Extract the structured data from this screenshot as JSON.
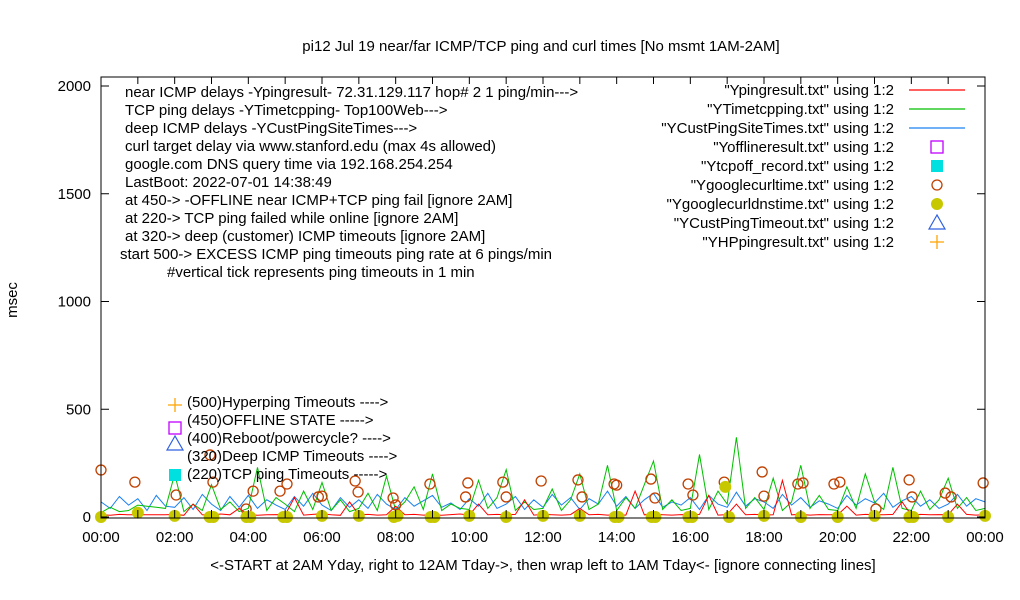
{
  "chart_data": {
    "type": "line",
    "title": "pi12 Jul 19  near/far ICMP/TCP ping and curl times [No msmt 1AM-2AM]",
    "xlabel": "<-START at 2AM Yday, right to 12AM Tday->, then wrap left to 1AM Tday<- [ignore connecting lines]",
    "ylabel": "msec",
    "xlim_hours": [
      0,
      24
    ],
    "ylim": [
      0,
      2050
    ],
    "x_tick_labels": [
      "00:00",
      "02:00",
      "04:00",
      "06:00",
      "08:00",
      "10:00",
      "12:00",
      "14:00",
      "16:00",
      "18:00",
      "20:00",
      "22:00",
      "00:00"
    ],
    "y_tick_labels": [
      "0",
      "500",
      "1000",
      "1500",
      "2000"
    ],
    "y_ticks": [
      0,
      500,
      1000,
      1500,
      2000
    ],
    "grid": false,
    "sample_interval_hours": 0.25,
    "annotations_top": [
      "near ICMP delays -Ypingresult- 72.31.129.117 hop# 2 1 ping/min--->",
      "TCP ping delays -YTimetcpping- Top100Web--->",
      "deep ICMP delays -YCustPingSiteTimes--->",
      "curl target delay via www.stanford.edu (max 4s allowed)",
      "google.com DNS query time via 192.168.254.254",
      "LastBoot: 2022-07-01 14:38:49",
      "at 450-> -OFFLINE near ICMP+TCP ping fail [ignore 2AM]",
      "at 220-> TCP ping failed while online [ignore 2AM]",
      "at 320-> deep (customer) ICMP timeouts [ignore 2AM]",
      "start 500-> EXCESS ICMP ping timeouts ping rate at 6 pings/min",
      "#vertical tick represents ping timeouts in 1 min"
    ],
    "annotations_bottom": [
      {
        "text": "(500)Hyperping Timeouts ---->",
        "icon": "plus",
        "color": "#ffa500"
      },
      {
        "text": "(450)OFFLINE STATE ----->",
        "icon": "square-open",
        "color": "#c000ff"
      },
      {
        "text": "(400)Reboot/powercycle? ---->",
        "icon": "none",
        "color": ""
      },
      {
        "text": "(320)Deep ICMP Timeouts ---->",
        "icon": "triangle-open",
        "color": "#3060e0"
      },
      {
        "text": "(220)TCP ping Timeouts ----->",
        "icon": "square-filled",
        "color": "#00e0e0"
      }
    ],
    "legend_position": "top-right",
    "legend": [
      {
        "label": "\"Ypingresult.txt\" using 1:2",
        "style": "line",
        "color": "#ff0000"
      },
      {
        "label": "\"YTimetcpping.txt\" using 1:2",
        "style": "line",
        "color": "#00c000"
      },
      {
        "label": "\"YCustPingSiteTimes.txt\" using 1:2",
        "style": "line",
        "color": "#1a80f0"
      },
      {
        "label": "\"Yofflineresult.txt\" using 1:2",
        "style": "square-open",
        "color": "#c000ff"
      },
      {
        "label": "\"Ytcpoff_record.txt\" using 1:2",
        "style": "square-filled",
        "color": "#00e0e0"
      },
      {
        "label": "\"Ygooglecurltime.txt\" using 1:2",
        "style": "circle-open",
        "color": "#c04000"
      },
      {
        "label": "\"Ygooglecurldnstime.txt\" using 1:2",
        "style": "circle-filled",
        "color": "#c8c800"
      },
      {
        "label": "\"YCustPingTimeout.txt\" using 1:2",
        "style": "triangle-open",
        "color": "#3060e0"
      },
      {
        "label": "\"YHPpingresult.txt\" using 1:2",
        "style": "plus",
        "color": "#ffa500"
      }
    ],
    "series": [
      {
        "file": "YCustPingSiteTimes",
        "color": "#1a80f0",
        "values": [
          70,
          40,
          95,
          55,
          85,
          30,
          100,
          50,
          45,
          90,
          35,
          105,
          60,
          30,
          95,
          45,
          100,
          40,
          80,
          55,
          35,
          95,
          50,
          110,
          55,
          30,
          90,
          45,
          80,
          40,
          105,
          60,
          35,
          90,
          50,
          75,
          100,
          45,
          65,
          35,
          85,
          50,
          110,
          40,
          60,
          95,
          35,
          80,
          45,
          105,
          55,
          90,
          35,
          85,
          60,
          120,
          50,
          95,
          40,
          80,
          110,
          45,
          70,
          55,
          90,
          35,
          100,
          60,
          45,
          115,
          50,
          85,
          70,
          40,
          105,
          55,
          90,
          45,
          75,
          60,
          40,
          100,
          55,
          85,
          65,
          110,
          45,
          75,
          95,
          50,
          80,
          40,
          60,
          105,
          50,
          85,
          70
        ]
      },
      {
        "file": "YTimetcpping",
        "color": "#00c000",
        "values": [
          20,
          45,
          25,
          30,
          55,
          50,
          45,
          40,
          200,
          25,
          60,
          30,
          150,
          35,
          70,
          25,
          40,
          230,
          30,
          90,
          60,
          25,
          120,
          35,
          160,
          30,
          80,
          25,
          40,
          110,
          30,
          190,
          30,
          70,
          140,
          35,
          200,
          30,
          60,
          40,
          35,
          170,
          40,
          90,
          220,
          30,
          70,
          35,
          40,
          130,
          30,
          80,
          200,
          35,
          60,
          240,
          30,
          90,
          40,
          150,
          260,
          35,
          80,
          30,
          40,
          290,
          35,
          120,
          60,
          370,
          40,
          90,
          35,
          180,
          30,
          70,
          240,
          40,
          100,
          35,
          30,
          140,
          40,
          200,
          70,
          35,
          230,
          40,
          30,
          120,
          35,
          80,
          180,
          40,
          90,
          30,
          40
        ]
      },
      {
        "file": "Ypingresult",
        "color": "#ff0000",
        "values": [
          10,
          8,
          12,
          10,
          10,
          10,
          10,
          10,
          12,
          8,
          60,
          10,
          9,
          14,
          10,
          40,
          12,
          8,
          10,
          11,
          10,
          90,
          9,
          12,
          15,
          10,
          8,
          70,
          10,
          12,
          9,
          10,
          50,
          10,
          12,
          9,
          10,
          8,
          11,
          14,
          9,
          60,
          10,
          12,
          10,
          12,
          80,
          9,
          12,
          10,
          9,
          11,
          40,
          10,
          12,
          9,
          10,
          9,
          120,
          10,
          12,
          10,
          9,
          11,
          10,
          12,
          100,
          9,
          11,
          60,
          10,
          12,
          9,
          10,
          170,
          10,
          12,
          9,
          11,
          10,
          10,
          50,
          9,
          12,
          11,
          10,
          12,
          70,
          9,
          12,
          10,
          11,
          10,
          60,
          12,
          9,
          10
        ]
      }
    ],
    "curl_times": {
      "color": "#c04000",
      "points": [
        [
          0.0,
          218
        ],
        [
          0.92,
          162
        ],
        [
          2.04,
          102
        ],
        [
          2.96,
          288
        ],
        [
          3.04,
          162
        ],
        [
          3.94,
          37
        ],
        [
          4.13,
          120
        ],
        [
          4.86,
          120
        ],
        [
          5.05,
          153
        ],
        [
          5.9,
          93
        ],
        [
          6.0,
          97
        ],
        [
          6.9,
          167
        ],
        [
          6.98,
          116
        ],
        [
          7.93,
          88
        ],
        [
          8.0,
          56
        ],
        [
          8.93,
          153
        ],
        [
          9.9,
          93
        ],
        [
          9.96,
          158
        ],
        [
          10.91,
          162
        ],
        [
          11.0,
          93
        ],
        [
          11.95,
          167
        ],
        [
          12.95,
          172
        ],
        [
          13.06,
          93
        ],
        [
          13.93,
          153
        ],
        [
          14.0,
          148
        ],
        [
          14.93,
          176
        ],
        [
          15.04,
          88
        ],
        [
          15.94,
          153
        ],
        [
          16.07,
          102
        ],
        [
          16.92,
          162
        ],
        [
          17.95,
          209
        ],
        [
          18.0,
          97
        ],
        [
          18.92,
          153
        ],
        [
          19.06,
          158
        ],
        [
          19.9,
          153
        ],
        [
          20.06,
          162
        ],
        [
          21.04,
          37
        ],
        [
          21.94,
          172
        ],
        [
          22.02,
          93
        ],
        [
          22.92,
          111
        ],
        [
          23.08,
          93
        ],
        [
          23.95,
          158
        ]
      ]
    },
    "dns_times": {
      "color": "#c8c800",
      "points": [
        [
          0.0,
          0
        ],
        [
          1.0,
          20
        ],
        [
          2.0,
          5
        ],
        [
          2.95,
          0
        ],
        [
          3.05,
          0
        ],
        [
          3.95,
          0
        ],
        [
          4.05,
          0
        ],
        [
          4.95,
          0
        ],
        [
          5.05,
          0
        ],
        [
          6.0,
          5
        ],
        [
          7.0,
          5
        ],
        [
          7.95,
          0
        ],
        [
          8.05,
          5
        ],
        [
          8.95,
          0
        ],
        [
          9.05,
          0
        ],
        [
          10.0,
          5
        ],
        [
          11.0,
          0
        ],
        [
          12.0,
          5
        ],
        [
          13.0,
          5
        ],
        [
          13.95,
          0
        ],
        [
          14.05,
          0
        ],
        [
          14.95,
          0
        ],
        [
          15.05,
          0
        ],
        [
          15.95,
          0
        ],
        [
          16.05,
          0
        ],
        [
          16.95,
          140
        ],
        [
          17.05,
          0
        ],
        [
          18.0,
          5
        ],
        [
          19.0,
          0
        ],
        [
          20.0,
          0
        ],
        [
          21.0,
          5
        ],
        [
          21.95,
          0
        ],
        [
          22.05,
          0
        ],
        [
          23.0,
          0
        ],
        [
          24.0,
          5
        ]
      ]
    }
  }
}
